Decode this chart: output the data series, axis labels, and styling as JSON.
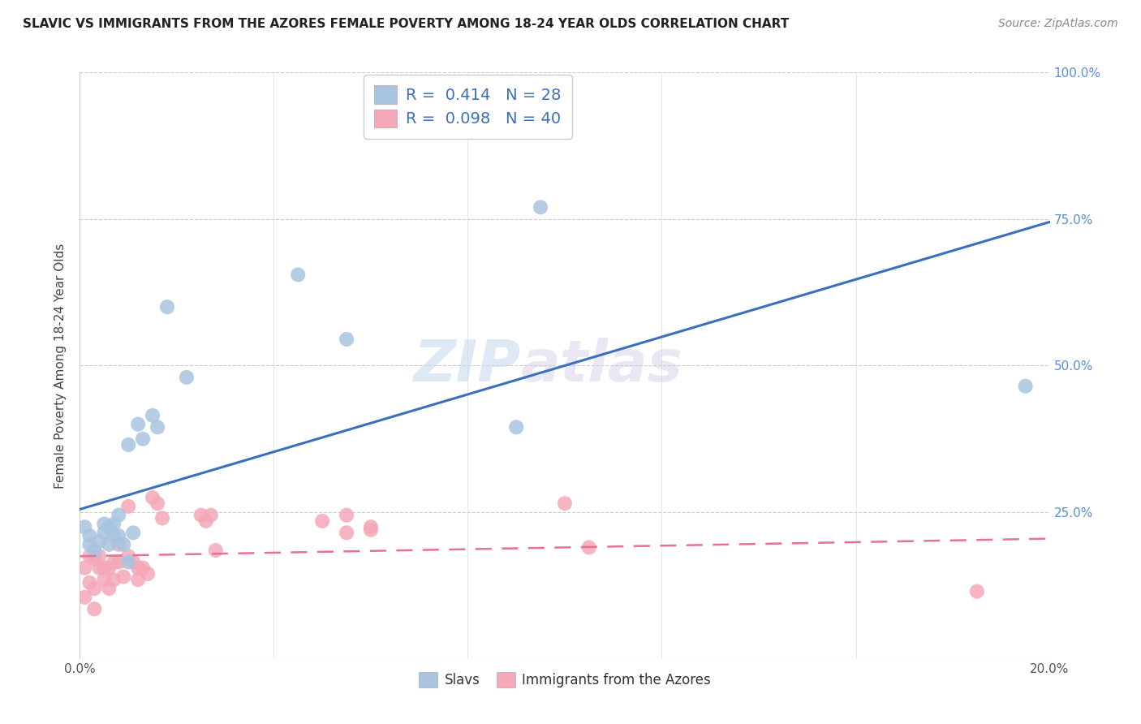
{
  "title": "SLAVIC VS IMMIGRANTS FROM THE AZORES FEMALE POVERTY AMONG 18-24 YEAR OLDS CORRELATION CHART",
  "source": "Source: ZipAtlas.com",
  "xlabel": "",
  "ylabel": "Female Poverty Among 18-24 Year Olds",
  "xlim": [
    0,
    0.2
  ],
  "ylim": [
    0,
    1.0
  ],
  "xtick_positions": [
    0.0,
    0.04,
    0.08,
    0.12,
    0.16,
    0.2
  ],
  "ytick_positions": [
    0.0,
    0.25,
    0.5,
    0.75,
    1.0
  ],
  "blue_R": 0.414,
  "blue_N": 28,
  "pink_R": 0.098,
  "pink_N": 40,
  "blue_color": "#a8c4e0",
  "pink_color": "#f4a8b8",
  "blue_line_color": "#3a6fbc",
  "pink_line_color": "#e87090",
  "watermark_zip": "ZIP",
  "watermark_atlas": "atlas",
  "legend_label1": "Slavs",
  "legend_label2": "Immigrants from the Azores",
  "slavs_x": [
    0.001,
    0.002,
    0.002,
    0.003,
    0.004,
    0.005,
    0.005,
    0.006,
    0.006,
    0.007,
    0.007,
    0.008,
    0.008,
    0.009,
    0.01,
    0.01,
    0.011,
    0.012,
    0.013,
    0.015,
    0.016,
    0.018,
    0.022,
    0.045,
    0.055,
    0.09,
    0.095,
    0.195
  ],
  "slavs_y": [
    0.225,
    0.21,
    0.195,
    0.185,
    0.2,
    0.215,
    0.23,
    0.225,
    0.195,
    0.21,
    0.23,
    0.21,
    0.245,
    0.195,
    0.165,
    0.365,
    0.215,
    0.4,
    0.375,
    0.415,
    0.395,
    0.6,
    0.48,
    0.655,
    0.545,
    0.395,
    0.77,
    0.465
  ],
  "azores_x": [
    0.001,
    0.001,
    0.002,
    0.002,
    0.003,
    0.003,
    0.003,
    0.004,
    0.004,
    0.005,
    0.005,
    0.006,
    0.006,
    0.007,
    0.007,
    0.008,
    0.008,
    0.009,
    0.01,
    0.01,
    0.011,
    0.012,
    0.012,
    0.013,
    0.014,
    0.015,
    0.016,
    0.017,
    0.025,
    0.026,
    0.027,
    0.028,
    0.05,
    0.055,
    0.055,
    0.06,
    0.06,
    0.1,
    0.105,
    0.185
  ],
  "azores_y": [
    0.155,
    0.105,
    0.175,
    0.13,
    0.17,
    0.12,
    0.085,
    0.175,
    0.155,
    0.155,
    0.135,
    0.155,
    0.12,
    0.165,
    0.135,
    0.165,
    0.195,
    0.14,
    0.26,
    0.175,
    0.165,
    0.135,
    0.155,
    0.155,
    0.145,
    0.275,
    0.265,
    0.24,
    0.245,
    0.235,
    0.245,
    0.185,
    0.235,
    0.245,
    0.215,
    0.22,
    0.225,
    0.265,
    0.19,
    0.115
  ],
  "blue_line_x0": 0.0,
  "blue_line_y0": 0.255,
  "blue_line_x1": 0.2,
  "blue_line_y1": 0.745,
  "pink_line_x0": 0.0,
  "pink_line_y0": 0.175,
  "pink_line_x1": 0.2,
  "pink_line_y1": 0.205
}
